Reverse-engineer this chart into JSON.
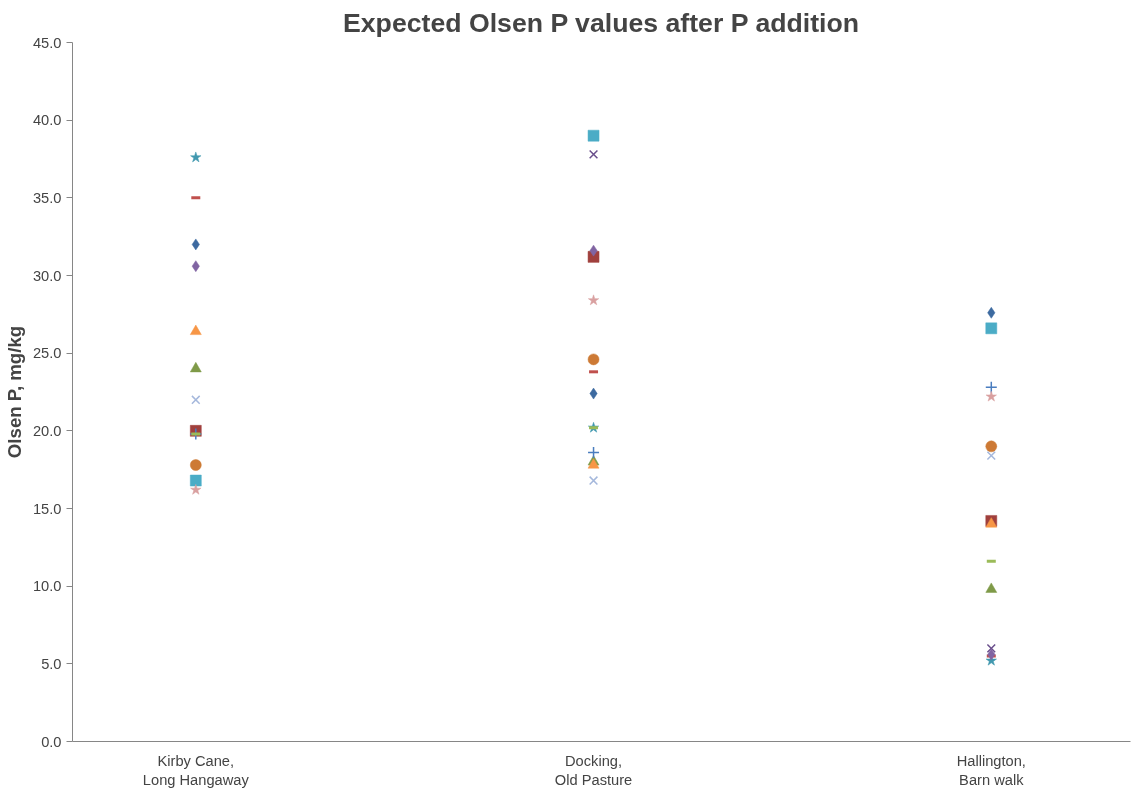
{
  "chart_data": {
    "type": "scatter",
    "title": "Expected Olsen P values after P addition",
    "ylabel": "Olsen P, mg/kg",
    "categories": [
      "Kirby Cane,\nLong Hangaway",
      "Docking,\nOld Pasture",
      "Hallington,\nBarn walk"
    ],
    "ylim": [
      0,
      45
    ],
    "yticks": [
      {
        "value": 0,
        "label": "0.0"
      },
      {
        "value": 5,
        "label": "5.0"
      },
      {
        "value": 10,
        "label": "10.0"
      },
      {
        "value": 15,
        "label": "15.0"
      },
      {
        "value": 20,
        "label": "20.0"
      },
      {
        "value": 25,
        "label": "25.0"
      },
      {
        "value": 30,
        "label": "30.0"
      },
      {
        "value": 35,
        "label": "35.0"
      },
      {
        "value": 40,
        "label": "40.0"
      },
      {
        "value": 45,
        "label": "45.0"
      }
    ],
    "grid": false,
    "series": [
      {
        "marker": "diamond",
        "color": "#3d6aa0",
        "values": [
          32.0,
          22.4,
          27.6
        ]
      },
      {
        "marker": "square",
        "color": "#a0403d",
        "values": [
          20.0,
          31.2,
          14.2
        ]
      },
      {
        "marker": "triangle",
        "color": "#7f9a48",
        "values": [
          24.0,
          18.0,
          9.8
        ]
      },
      {
        "marker": "x",
        "color": "#6a4f8c",
        "values": [
          null,
          37.8,
          6.0
        ]
      },
      {
        "marker": "star",
        "color": "#4198af",
        "values": [
          37.6,
          20.2,
          5.2
        ]
      },
      {
        "marker": "circle",
        "color": "#cd7a35",
        "values": [
          17.8,
          24.6,
          19.0
        ]
      },
      {
        "marker": "cross",
        "color": "#4a7dbf",
        "values": [
          19.8,
          18.6,
          22.8
        ]
      },
      {
        "color": "#c0504d",
        "values": [
          35.0,
          23.8,
          5.5
        ]
      },
      {
        "color": "#9bbb59",
        "values": [
          19.8,
          20.2,
          11.6
        ]
      },
      {
        "marker": "diamond",
        "color": "#8064a2",
        "values": [
          30.6,
          31.6,
          5.6
        ]
      },
      {
        "marker": "square",
        "color": "#4bacc6",
        "values": [
          16.8,
          39.0,
          26.6
        ]
      },
      {
        "marker": "triangle",
        "color": "#f79646",
        "values": [
          26.4,
          17.8,
          14.0
        ]
      },
      {
        "marker": "x",
        "color": "#a5b8dc",
        "values": [
          22.0,
          16.8,
          18.4
        ]
      },
      {
        "marker": "star",
        "color": "#d9a0a0",
        "values": [
          16.2,
          28.4,
          22.2
        ]
      }
    ]
  }
}
